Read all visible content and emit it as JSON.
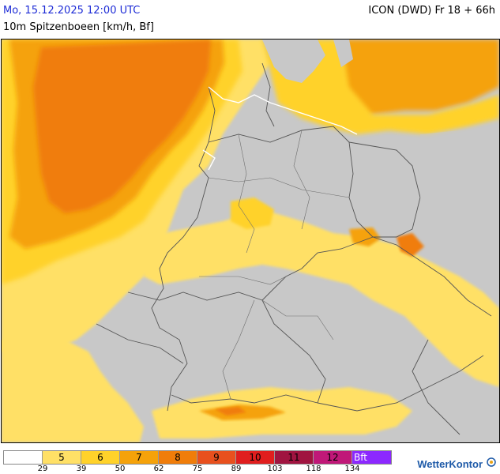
{
  "header": {
    "date": "Mo, 15.12.2025 12:00 UTC",
    "model": "ICON (DWD) Fr 18 + 66h",
    "parameter": "10m Spitzenboeen [km/h, Bf]"
  },
  "legend": {
    "segments": [
      {
        "label": "",
        "color": "#ffffff"
      },
      {
        "label": "5",
        "color": "#ffe066"
      },
      {
        "label": "6",
        "color": "#ffd22a"
      },
      {
        "label": "7",
        "color": "#f5a20a"
      },
      {
        "label": "8",
        "color": "#f07d0a"
      },
      {
        "label": "9",
        "color": "#e8501e"
      },
      {
        "label": "10",
        "color": "#e01e1e"
      },
      {
        "label": "11",
        "color": "#a01440"
      },
      {
        "label": "12",
        "color": "#c01878"
      },
      {
        "label": "Bft",
        "color": "#8c28ff"
      }
    ],
    "ticks": [
      "29",
      "39",
      "50",
      "62",
      "75",
      "89",
      "103",
      "118",
      "134"
    ]
  },
  "brand": {
    "name": "WetterKontor"
  },
  "colors": {
    "land_calm": "#c8c8c8",
    "sea_border": "#ffffff",
    "border_line": "#555555"
  }
}
